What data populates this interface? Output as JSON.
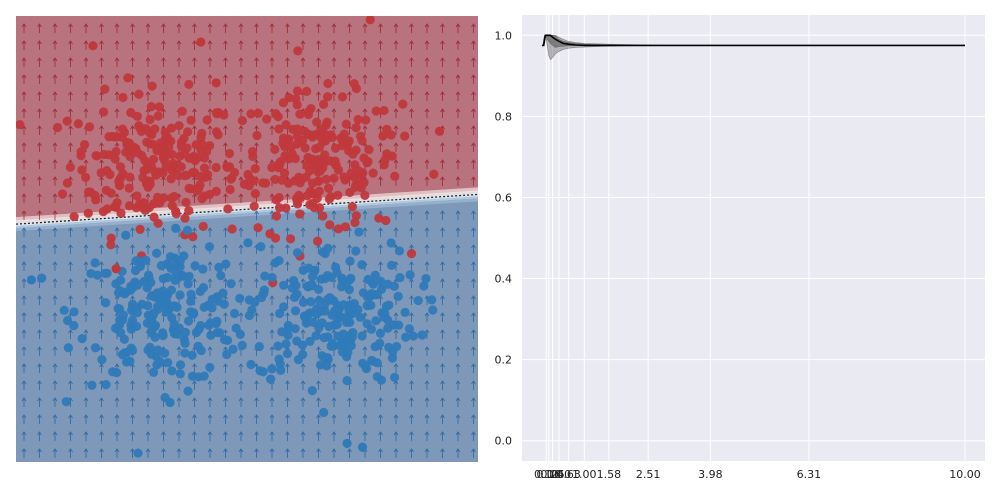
{
  "colors": {
    "red_region": "#b8737f",
    "blue_region": "#7d98b9",
    "red_point": "#c0383c",
    "blue_point": "#2f7ab8",
    "red_arrow": "#9c1b25",
    "blue_arrow": "#1f5f9c",
    "plot_bg": "#eaeaf2",
    "grid": "#ffffff",
    "curve": "#000000",
    "band": "#505050"
  },
  "chart_data": [
    {
      "type": "scatter",
      "title": "",
      "xlabel": "",
      "ylabel": "",
      "axes_visible": false,
      "xlim": [
        -3.0,
        3.0
      ],
      "ylim": [
        -3.0,
        3.0
      ],
      "decision_boundary": {
        "y_at_left": 0.2,
        "y_at_right": 0.6
      },
      "clusters": [
        {
          "name": "",
          "class": "red",
          "center": [
            -1.2,
            1.0
          ],
          "spread": 0.55,
          "count": 210
        },
        {
          "name": "",
          "class": "red",
          "center": [
            0.9,
            1.0
          ],
          "spread": 0.55,
          "count": 210
        },
        {
          "name": "",
          "class": "blue",
          "center": [
            -1.1,
            -1.0
          ],
          "spread": 0.55,
          "count": 210
        },
        {
          "name": "",
          "class": "blue",
          "center": [
            1.1,
            -1.0
          ],
          "spread": 0.55,
          "count": 210
        }
      ],
      "outliers": [
        {
          "class": "red",
          "x": -2.0,
          "y": 2.6
        },
        {
          "class": "red",
          "x": -0.6,
          "y": 2.65
        },
        {
          "class": "red",
          "x": 1.6,
          "y": 2.95
        },
        {
          "class": "red",
          "x": -0.4,
          "y": 2.1
        },
        {
          "class": "red",
          "x": 2.5,
          "y": 1.45
        },
        {
          "class": "red",
          "x": -1.7,
          "y": -0.4
        },
        {
          "class": "blue",
          "x": 1.3,
          "y": -2.75
        },
        {
          "class": "blue",
          "x": 1.5,
          "y": -2.8
        },
        {
          "class": "blue",
          "x": -1.0,
          "y": -2.2
        },
        {
          "class": "blue",
          "x": -2.8,
          "y": -0.55
        }
      ]
    },
    {
      "type": "line",
      "title": "",
      "xlabel": "",
      "ylabel": "",
      "ylim": [
        -0.05,
        1.05
      ],
      "yticks": [
        0.0,
        0.2,
        0.4,
        0.6,
        0.8,
        1.0
      ],
      "ytick_labels": [
        "0.0",
        "0.2",
        "0.4",
        "0.6",
        "0.8",
        "1.0"
      ],
      "xticks": [
        0.1,
        0.16,
        0.25,
        0.4,
        0.63,
        1.0,
        1.58,
        2.51,
        3.98,
        6.31,
        10.0
      ],
      "xtick_labels": [
        "0.10",
        "0.16",
        "0.25",
        "0.40",
        "0.63",
        "1.00",
        "1.58",
        "2.51",
        "3.98",
        "6.31",
        "10.00"
      ],
      "grid": true,
      "x": [
        0.0,
        0.02,
        0.04,
        0.06,
        0.08,
        0.1,
        0.13,
        0.16,
        0.2,
        0.25,
        0.32,
        0.4,
        0.5,
        0.63,
        0.8,
        1.0,
        1.3,
        1.58,
        2.0,
        2.51,
        3.2,
        3.98,
        5.0,
        6.31,
        8.0,
        10.0
      ],
      "series": [
        {
          "name": "",
          "role": "mean",
          "values": [
            0.975,
            0.975,
            0.975,
            0.99,
            1.0,
            1.0,
            1.0,
            1.0,
            1.0,
            0.995,
            0.99,
            0.985,
            0.98,
            0.978,
            0.976,
            0.975,
            0.975,
            0.975,
            0.975,
            0.975,
            0.975,
            0.975,
            0.975,
            0.975,
            0.975,
            0.975
          ]
        }
      ],
      "bands": [
        {
          "name": "",
          "lower": [
            0.975,
            0.975,
            0.975,
            0.98,
            0.99,
            0.99,
            0.97,
            0.95,
            0.94,
            0.945,
            0.955,
            0.96,
            0.965,
            0.968,
            0.97,
            0.971,
            0.972,
            0.973,
            0.974,
            0.975,
            0.975,
            0.975,
            0.975,
            0.975,
            0.975,
            0.975
          ],
          "upper": [
            0.975,
            0.975,
            0.99,
            1.0,
            1.0,
            1.0,
            1.0,
            1.0,
            1.0,
            1.0,
            1.0,
            0.995,
            0.99,
            0.985,
            0.982,
            0.98,
            0.979,
            0.978,
            0.977,
            0.976,
            0.975,
            0.975,
            0.975,
            0.975,
            0.975,
            0.975
          ]
        },
        {
          "name": "",
          "lower": [
            0.975,
            0.975,
            0.975,
            0.985,
            0.995,
            0.995,
            0.99,
            0.985,
            0.98,
            0.975,
            0.97,
            0.972,
            0.973,
            0.974,
            0.975,
            0.975,
            0.975,
            0.975,
            0.975,
            0.975,
            0.975,
            0.975,
            0.975,
            0.975,
            0.975,
            0.975
          ],
          "upper": [
            0.975,
            0.975,
            0.982,
            0.998,
            1.0,
            1.0,
            1.0,
            1.0,
            1.0,
            1.0,
            0.998,
            0.99,
            0.985,
            0.982,
            0.98,
            0.978,
            0.977,
            0.976,
            0.976,
            0.975,
            0.975,
            0.975,
            0.975,
            0.975,
            0.975,
            0.975
          ]
        }
      ]
    }
  ]
}
